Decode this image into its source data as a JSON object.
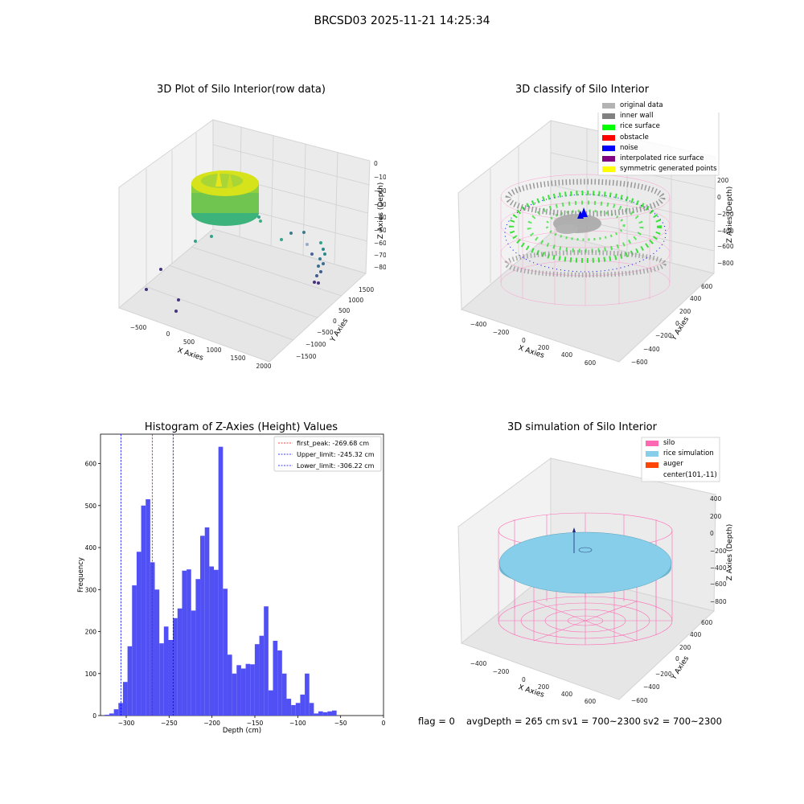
{
  "page": {
    "suptitle": "BRCSD03 2025-11-21 14:25:34",
    "status": {
      "flag": "flag = 0",
      "avg_depth": "avgDepth = 265 cm",
      "sv1": "sv1 = 700~2300",
      "sv2": "sv2 = 700~2300"
    }
  },
  "colors": {
    "hist_bar": "#5050f5",
    "first_peak": "#ff0000",
    "limits": "#0000ff",
    "silo_wire": "#ff69b4",
    "rice_sim": "#87ceeb",
    "wall_points": "#808080",
    "rice_points": "#00ff00",
    "noise_points": "#0000ff"
  },
  "chart_data": [
    {
      "id": "raw",
      "type": "scatter3d",
      "title": "3D Plot of Silo Interior(row data)",
      "xlabel": "X Axies",
      "ylabel": "Y Axies",
      "zlabel": "Z Axies (Depth)",
      "x_ticks": [
        "−500",
        "0",
        "500",
        "1000",
        "1500",
        "2000"
      ],
      "y_ticks": [
        "−1500",
        "−1000",
        "−500",
        "0",
        "500",
        "1000",
        "1500"
      ],
      "z_ticks": [
        "0",
        "−100",
        "−200",
        "−300",
        "−400",
        "−500",
        "−600",
        "−700",
        "−800"
      ]
    },
    {
      "id": "classify",
      "type": "scatter3d",
      "title": "3D classify of Silo Interior",
      "xlabel": "X Axies",
      "ylabel": "Y Axies",
      "zlabel": "Z Axies (Depth)",
      "x_ticks": [
        "−400",
        "−200",
        "0",
        "200",
        "400",
        "600"
      ],
      "y_ticks": [
        "−600",
        "−400",
        "−200",
        "0",
        "200",
        "400",
        "600"
      ],
      "z_ticks": [
        "200",
        "0",
        "−200",
        "−400",
        "−600",
        "−800"
      ],
      "legend_position": "top-right",
      "legend": [
        {
          "label": "original data",
          "color": "#b3b3b3"
        },
        {
          "label": "inner wall",
          "color": "#808080"
        },
        {
          "label": "rice surface",
          "color": "#00ff00"
        },
        {
          "label": "obstacle",
          "color": "#ff0000"
        },
        {
          "label": "noise",
          "color": "#0000ff"
        },
        {
          "label": "interpolated rice surface",
          "color": "#800080"
        },
        {
          "label": "symmetric generated points",
          "color": "#ffff00"
        }
      ]
    },
    {
      "id": "hist",
      "type": "bar",
      "title": "Histogram of Z-Axies (Height) Values",
      "xlabel": "Depth (cm)",
      "ylabel": "Frequency",
      "xlim": [
        -330,
        0
      ],
      "ylim": [
        0,
        670
      ],
      "x_ticks": [
        -300,
        -250,
        -200,
        -150,
        -100,
        -50,
        0
      ],
      "y_ticks": [
        0,
        100,
        200,
        300,
        400,
        500,
        600
      ],
      "bin_start": -325,
      "bin_width": 5.3,
      "values": [
        2,
        5,
        15,
        30,
        80,
        165,
        310,
        390,
        500,
        515,
        365,
        300,
        172,
        212,
        180,
        232,
        255,
        345,
        348,
        250,
        325,
        428,
        448,
        355,
        347,
        640,
        302,
        145,
        100,
        120,
        112,
        123,
        122,
        170,
        190,
        260,
        60,
        178,
        155,
        100,
        40,
        25,
        30,
        50,
        100,
        30,
        5,
        10,
        8,
        10,
        12
      ],
      "lines": [
        {
          "label": "first_peak: -269.68 cm",
          "x": -269.68,
          "color": "#ff0000"
        },
        {
          "label": "Upper_limit: -245.32 cm",
          "x": -245.32,
          "color": "#0000ff"
        },
        {
          "label": "Lower_limit: -306.22 cm",
          "x": -306.22,
          "color": "#0000ff"
        }
      ],
      "legend_position": "top-right"
    },
    {
      "id": "simulation",
      "type": "surface3d",
      "title": "3D simulation of Silo Interior",
      "xlabel": "X Axies",
      "ylabel": "Y Axies",
      "zlabel": "Z Axies (Depth)",
      "x_ticks": [
        "−400",
        "−200",
        "0",
        "200",
        "400",
        "600"
      ],
      "y_ticks": [
        "−600",
        "−400",
        "−200",
        "0",
        "200",
        "400",
        "600"
      ],
      "z_ticks": [
        "400",
        "200",
        "0",
        "−200",
        "−400",
        "−600",
        "−800"
      ],
      "legend_position": "top-right",
      "legend": [
        {
          "label": "silo",
          "color": "#ff69b4"
        },
        {
          "label": "rice simulation",
          "color": "#87ceeb"
        },
        {
          "label": "auger",
          "color": "#ff4500"
        },
        {
          "label": "center(101,-11)",
          "color": ""
        }
      ]
    }
  ]
}
